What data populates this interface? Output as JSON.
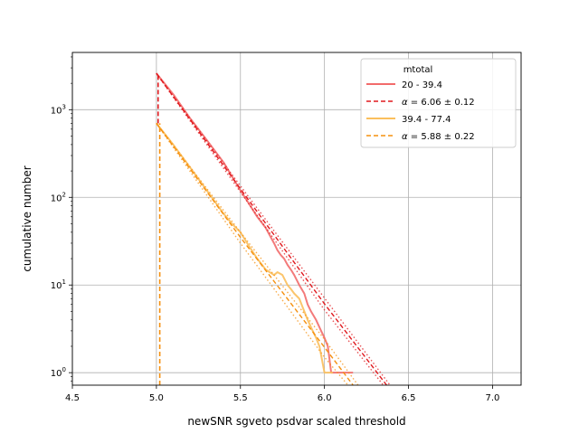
{
  "chart_data": {
    "type": "line",
    "title": "",
    "xlabel": "newSNR sgveto psdvar scaled threshold",
    "ylabel": "cumulative number",
    "xlim": [
      4.5,
      7.17
    ],
    "ylim": [
      0.72,
      4500
    ],
    "yscale": "log",
    "grid": true,
    "xticks": [
      4.5,
      5.0,
      5.5,
      6.0,
      6.5,
      7.0
    ],
    "xtick_labels": [
      "4.5",
      "5.0",
      "5.5",
      "6.0",
      "6.5",
      "7.0"
    ],
    "yticks": [
      1,
      10,
      100,
      1000
    ],
    "ytick_labels": [
      "10^0",
      "10^1",
      "10^2",
      "10^3"
    ],
    "legend": {
      "title": "mtotal",
      "position": "top-right",
      "entries": [
        {
          "label": "20 - 39.4",
          "style": "solid",
          "color": "#f26b6b"
        },
        {
          "label_prefix": "α",
          "label": " = 6.06 ± 0.12",
          "style": "dashed",
          "color": "#e0191e"
        },
        {
          "label": "39.4 - 77.4",
          "style": "solid",
          "color": "#fbbf5c"
        },
        {
          "label_prefix": "α",
          "label": " = 5.88 ± 0.22",
          "style": "dashed",
          "color": "#f5900f"
        }
      ]
    },
    "series": [
      {
        "name": "20 - 39.4",
        "kind": "data",
        "style": "solid",
        "color": "#f26b6b",
        "x": [
          5.0,
          5.1,
          5.2,
          5.3,
          5.4,
          5.5,
          5.55,
          5.6,
          5.65,
          5.7,
          5.72,
          5.74,
          5.76,
          5.78,
          5.8,
          5.82,
          5.85,
          5.88,
          5.9,
          5.92,
          5.95,
          5.98,
          6.0,
          6.02,
          6.04,
          6.1,
          6.15,
          6.17
        ],
        "y": [
          2600,
          1500,
          800,
          450,
          250,
          120,
          85,
          60,
          45,
          30,
          25,
          22,
          20,
          17,
          15,
          13,
          10,
          8,
          6,
          5,
          4,
          3,
          2.5,
          2,
          1,
          1,
          1,
          1
        ]
      },
      {
        "name": "α = 6.06 ± 0.12",
        "kind": "fit",
        "style": "dashed",
        "color": "#e0191e",
        "x": [
          5.0,
          5.5,
          6.0,
          6.37
        ],
        "y": [
          2600,
          125,
          6.1,
          0.72
        ]
      },
      {
        "name": "",
        "kind": "fit-bound",
        "style": "dotted",
        "color": "#e0191e",
        "x": [
          5.0,
          5.5,
          6.0,
          6.35
        ],
        "y": [
          2600,
          115,
          5.2,
          0.72
        ]
      },
      {
        "name": "",
        "kind": "fit-bound",
        "style": "dotted",
        "color": "#e0191e",
        "x": [
          5.0,
          5.5,
          6.0,
          6.39
        ],
        "y": [
          2600,
          135,
          7.1,
          0.72
        ]
      },
      {
        "name": "39.4 - 77.4",
        "kind": "data",
        "style": "solid",
        "color": "#fbbf5c",
        "x": [
          5.0,
          5.1,
          5.2,
          5.3,
          5.4,
          5.45,
          5.5,
          5.55,
          5.6,
          5.65,
          5.7,
          5.72,
          5.75,
          5.78,
          5.8,
          5.82,
          5.85,
          5.88,
          5.9,
          5.93,
          5.95,
          5.97,
          6.0,
          6.02,
          6.05
        ],
        "y": [
          700,
          400,
          220,
          120,
          65,
          50,
          40,
          28,
          20,
          15,
          13,
          14,
          13,
          10,
          9,
          8,
          7,
          5,
          4,
          3,
          2.5,
          2,
          1,
          1,
          1
        ]
      },
      {
        "name": "α = 5.88 ± 0.22",
        "kind": "fit",
        "style": "dashed",
        "color": "#f5900f",
        "x": [
          5.0,
          5.5,
          6.0,
          6.17
        ],
        "y": [
          700,
          35,
          1.95,
          0.72
        ]
      },
      {
        "name": "",
        "kind": "fit-bound",
        "style": "dotted",
        "color": "#f5900f",
        "x": [
          5.0,
          5.5,
          6.0,
          6.14
        ],
        "y": [
          700,
          30,
          1.5,
          0.72
        ]
      },
      {
        "name": "",
        "kind": "fit-bound",
        "style": "dotted",
        "color": "#f5900f",
        "x": [
          5.0,
          5.5,
          6.0,
          6.2
        ],
        "y": [
          700,
          40,
          2.4,
          0.72
        ]
      }
    ],
    "vertical_lines": [
      {
        "x": 5.01,
        "y_from": 700,
        "y_to": 2600,
        "style": "dashed",
        "color": "#e0191e"
      },
      {
        "x": 5.02,
        "y_from": 0.72,
        "y_to": 700,
        "style": "dashed",
        "color": "#f5900f"
      }
    ]
  }
}
